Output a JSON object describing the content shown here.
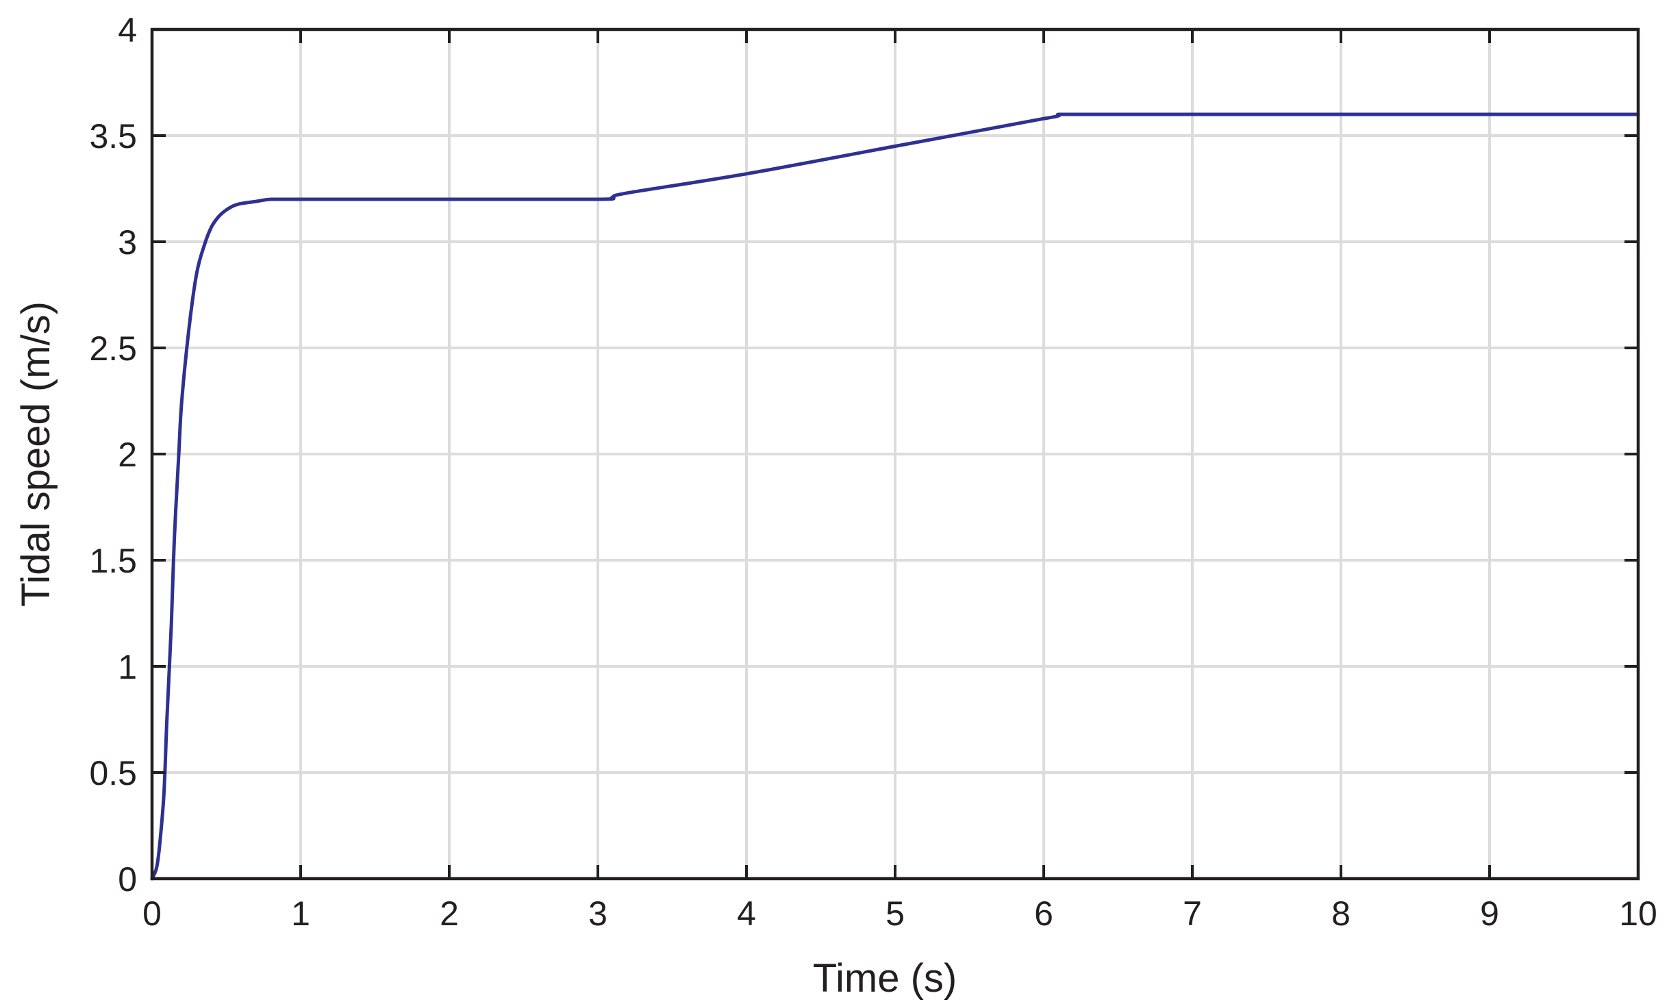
{
  "chart_data": {
    "type": "line",
    "title": "",
    "xlabel": "Time (s)",
    "ylabel": "Tidal speed (m/s)",
    "xlim": [
      0,
      10
    ],
    "ylim": [
      0,
      4
    ],
    "xticks": [
      0,
      1,
      2,
      3,
      4,
      5,
      6,
      7,
      8,
      9,
      10
    ],
    "yticks": [
      0,
      0.5,
      1,
      1.5,
      2,
      2.5,
      3,
      3.5,
      4
    ],
    "xtick_labels": [
      "0",
      "1",
      "2",
      "3",
      "4",
      "5",
      "6",
      "7",
      "8",
      "9",
      "10"
    ],
    "ytick_labels": [
      "0",
      "0.5",
      "1",
      "1.5",
      "2",
      "2.5",
      "3",
      "3.5",
      "4"
    ],
    "grid": true,
    "series": [
      {
        "color": "#2e3192",
        "x": [
          0,
          0.03,
          0.05,
          0.08,
          0.1,
          0.13,
          0.15,
          0.18,
          0.2,
          0.25,
          0.3,
          0.35,
          0.4,
          0.45,
          0.5,
          0.55,
          0.6,
          0.7,
          0.8,
          1.0,
          2.0,
          3.0,
          3.1,
          3.2,
          4.0,
          5.0,
          6.0,
          6.1,
          6.2,
          7.0,
          8.0,
          9.0,
          10.0
        ],
        "y": [
          0,
          0.05,
          0.15,
          0.4,
          0.75,
          1.2,
          1.6,
          2.0,
          2.25,
          2.6,
          2.85,
          2.98,
          3.07,
          3.12,
          3.15,
          3.17,
          3.18,
          3.19,
          3.2,
          3.2,
          3.2,
          3.2,
          3.21,
          3.23,
          3.32,
          3.45,
          3.58,
          3.6,
          3.6,
          3.6,
          3.6,
          3.6,
          3.6
        ]
      }
    ]
  }
}
